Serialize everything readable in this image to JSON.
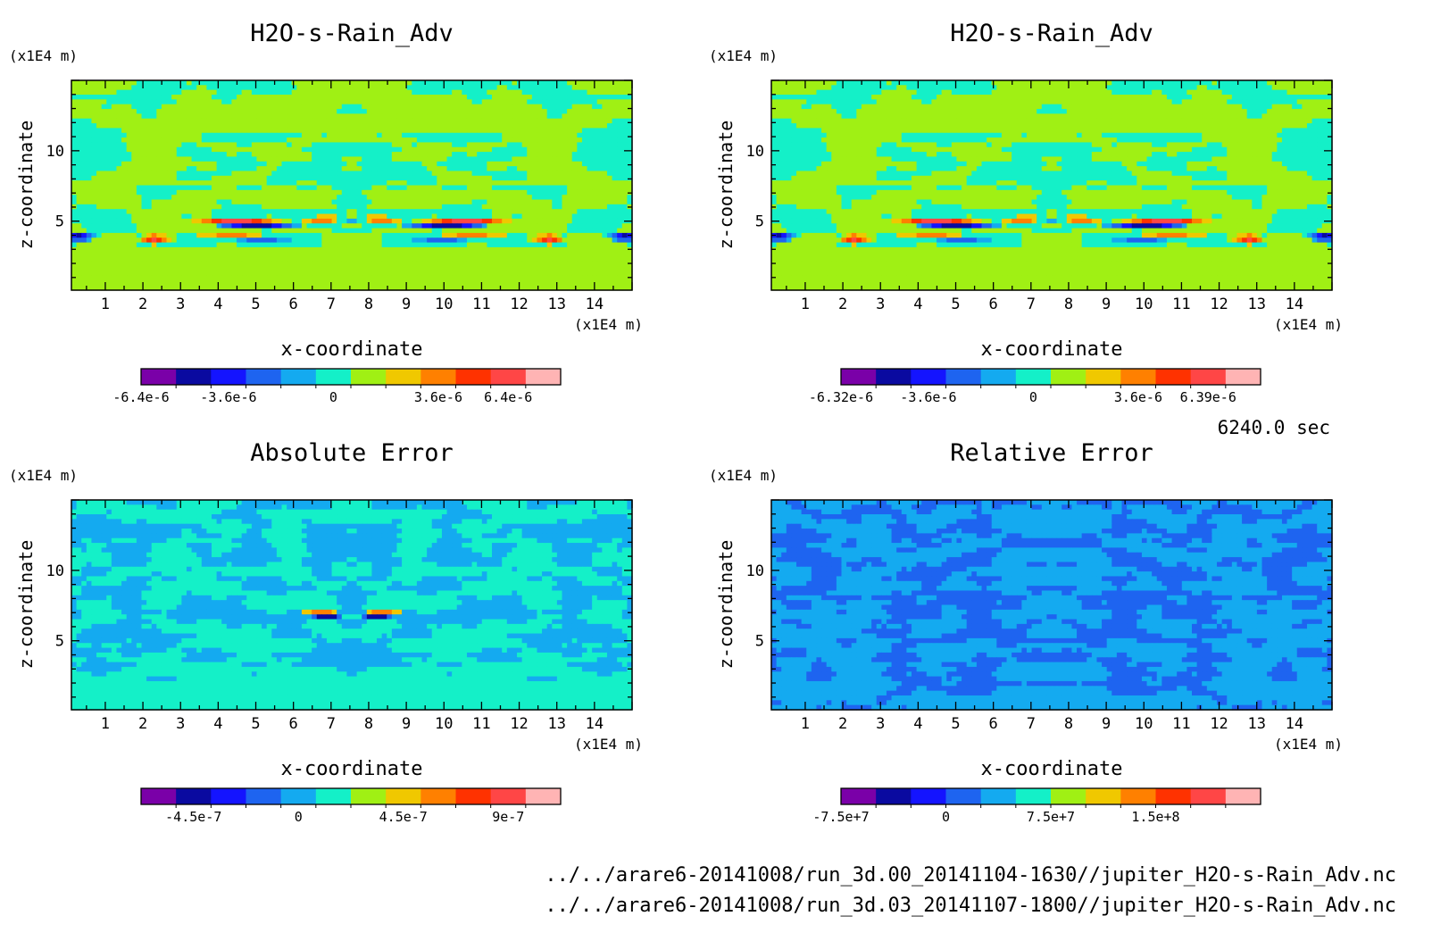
{
  "time_label": "6240.0 sec",
  "files": [
    "../../arare6-20141008/run_3d.00_20141104-1630//jupiter_H2O-s-Rain_Adv.nc",
    "../../arare6-20141008/run_3d.03_20141107-1800//jupiter_H2O-s-Rain_Adv.nc"
  ],
  "palette": [
    "#7a00a8",
    "#0a0aa0",
    "#1414ff",
    "#1e64f0",
    "#14aaf0",
    "#14f0c8",
    "#a0f014",
    "#f0c800",
    "#ff8000",
    "#ff3200",
    "#ff4646",
    "#ffb4b4"
  ],
  "chart_data": [
    {
      "type": "heatmap",
      "title": "H2O-s-Rain_Adv",
      "xlabel": "x-coordinate",
      "ylabel": "z-coordinate",
      "x_unit": "(x1E4 m)",
      "y_unit": "(x1E4 m)",
      "xlim": [
        0.1,
        15.0
      ],
      "ylim": [
        0.1,
        15.0
      ],
      "xticks": [
        1,
        2,
        3,
        4,
        5,
        6,
        7,
        8,
        9,
        10,
        11,
        12,
        13,
        14
      ],
      "yticks": [
        5,
        10
      ],
      "colorbar_ticks": [
        "-6.4e-6",
        "-3.6e-6",
        "0",
        "3.6e-6",
        "6.4e-6"
      ],
      "colorbar_tick_positions": [
        0,
        2.5,
        5.5,
        8.5,
        10.5
      ],
      "field": "base"
    },
    {
      "type": "heatmap",
      "title": "H2O-s-Rain_Adv",
      "xlabel": "x-coordinate",
      "ylabel": "z-coordinate",
      "x_unit": "(x1E4 m)",
      "y_unit": "(x1E4 m)",
      "xlim": [
        0.1,
        15.0
      ],
      "ylim": [
        0.1,
        15.0
      ],
      "xticks": [
        1,
        2,
        3,
        4,
        5,
        6,
        7,
        8,
        9,
        10,
        11,
        12,
        13,
        14
      ],
      "yticks": [
        5,
        10
      ],
      "colorbar_ticks": [
        "-6.32e-6",
        "-3.6e-6",
        "0",
        "3.6e-6",
        "6.39e-6"
      ],
      "colorbar_tick_positions": [
        0,
        2.5,
        5.5,
        8.5,
        10.5
      ],
      "field": "base"
    },
    {
      "type": "heatmap",
      "title": "Absolute Error",
      "xlabel": "x-coordinate",
      "ylabel": "z-coordinate",
      "x_unit": "(x1E4 m)",
      "y_unit": "(x1E4 m)",
      "xlim": [
        0.1,
        15.0
      ],
      "ylim": [
        0.1,
        15.0
      ],
      "xticks": [
        1,
        2,
        3,
        4,
        5,
        6,
        7,
        8,
        9,
        10,
        11,
        12,
        13,
        14
      ],
      "yticks": [
        5,
        10
      ],
      "colorbar_ticks": [
        "-4.5e-7",
        "0",
        "4.5e-7",
        "9e-7"
      ],
      "colorbar_tick_positions": [
        1.5,
        4.5,
        7.5,
        10.5
      ],
      "field": "abs"
    },
    {
      "type": "heatmap",
      "title": "Relative Error",
      "xlabel": "x-coordinate",
      "ylabel": "z-coordinate",
      "x_unit": "(x1E4 m)",
      "y_unit": "(x1E4 m)",
      "xlim": [
        0.1,
        15.0
      ],
      "ylim": [
        0.1,
        15.0
      ],
      "xticks": [
        1,
        2,
        3,
        4,
        5,
        6,
        7,
        8,
        9,
        10,
        11,
        12,
        13,
        14
      ],
      "yticks": [
        5,
        10
      ],
      "colorbar_ticks": [
        "-7.5e+7",
        "0",
        "7.5e+7",
        "1.5e+8"
      ],
      "colorbar_tick_positions": [
        0,
        3,
        6,
        9
      ],
      "field": "rel"
    }
  ]
}
